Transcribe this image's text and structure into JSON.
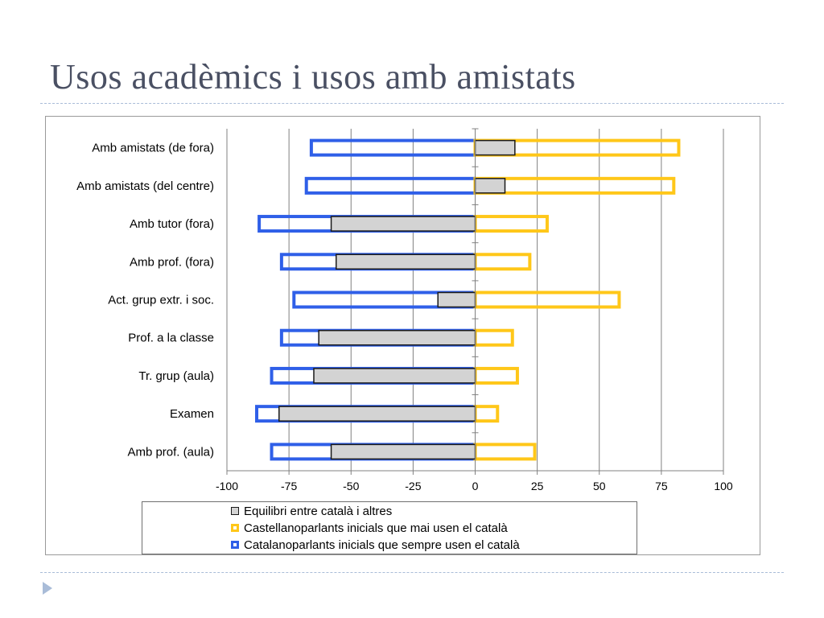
{
  "slide": {
    "title": "Usos acadèmics i usos amb amistats"
  },
  "colors": {
    "equilibri": "#d3d3d3",
    "castellano": "#ffc719",
    "catalano": "#2f5fe8",
    "grid": "#808080",
    "rule": "#a9bcd8",
    "title": "#4a5063"
  },
  "icons": {
    "bullet": "triangle-bullet-icon"
  },
  "chart_data": {
    "type": "bar",
    "orientation": "horizontal",
    "title": "",
    "xlabel": "",
    "ylabel": "",
    "xlim": [
      -100,
      100
    ],
    "x_ticks": [
      -100,
      -75,
      -50,
      -25,
      0,
      25,
      50,
      75,
      100
    ],
    "grid": true,
    "legend_position": "bottom",
    "categories": [
      "Amb amistats (de fora)",
      "Amb amistats (del centre)",
      "Amb tutor (fora)",
      "Amb prof. (fora)",
      "Act. grup extr. i soc.",
      "Prof. a la classe",
      "Tr. grup (aula)",
      "Examen",
      "Amb prof. (aula)"
    ],
    "series": [
      {
        "name": "Catalanoparlants inicials que sempre usen el català",
        "style": "outline",
        "color": "#2f5fe8",
        "values": [
          -66,
          -68,
          -87,
          -78,
          -73,
          -78,
          -82,
          -88,
          -82
        ]
      },
      {
        "name": "Castellanoparlants inicials que mai usen el català",
        "style": "outline",
        "color": "#ffc719",
        "values": [
          82,
          80,
          29,
          22,
          58,
          15,
          17,
          9,
          24
        ]
      },
      {
        "name": "Equilibri entre català i altres",
        "style": "filled",
        "color": "#d3d3d3",
        "values": [
          16,
          12,
          -58,
          -56,
          -15,
          -63,
          -65,
          -79,
          -58
        ]
      }
    ],
    "legend_order": [
      "Equilibri entre català i altres",
      "Castellanoparlants inicials que mai usen el català",
      "Catalanoparlants inicials que sempre usen el català"
    ]
  }
}
